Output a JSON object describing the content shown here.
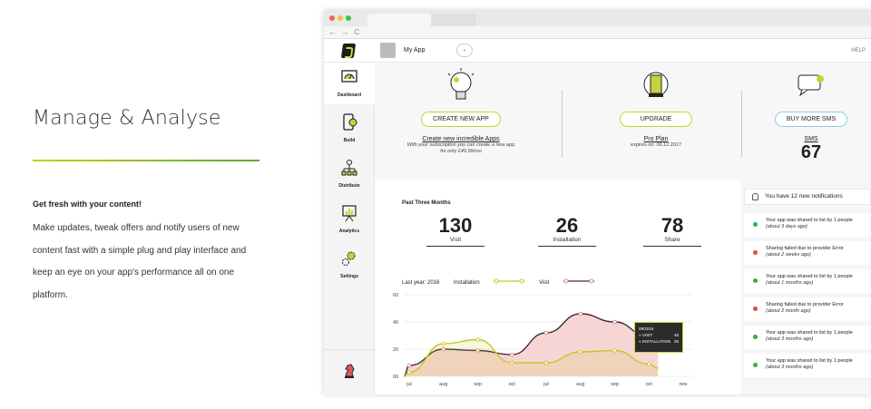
{
  "marketing": {
    "heading": "Manage & Analyse",
    "subheading": "Get fresh with your content!",
    "body": "Make updates, tweak offers and notify users of new content fast with a simple plug and play interface and keep an eye on your app's performance all on one platform."
  },
  "browser": {
    "nav_glyphs": "← → C"
  },
  "topbar": {
    "app_name": "My App",
    "dropdown": "⌄",
    "help": "HELP"
  },
  "sidebar": {
    "items": [
      {
        "label": "Dashboard",
        "icon": "dashboard-icon"
      },
      {
        "label": "Build",
        "icon": "build-icon"
      },
      {
        "label": "Distribute",
        "icon": "distribute-icon"
      },
      {
        "label": "Analytics",
        "icon": "analytics-icon"
      },
      {
        "label": "Settings",
        "icon": "settings-icon"
      }
    ],
    "bottom_icon": "chess-knight-icon"
  },
  "hero": {
    "create": {
      "button": "CREATE NEW APP",
      "link": "Create new incredible Apps",
      "note1": "With your subscription you can create a new app",
      "note2": "for only £49,99/mo"
    },
    "upgrade": {
      "button": "UPGRADE",
      "link": "Pro Plan",
      "note": "expires on: 09.12.2017"
    },
    "sms": {
      "button": "BUY MORE SMS",
      "link": "SMS",
      "count": "67"
    }
  },
  "stats": {
    "title": "Past Three Months",
    "items": [
      {
        "value": "130",
        "label": "Visit"
      },
      {
        "value": "26",
        "label": "Installation"
      },
      {
        "value": "78",
        "label": "Share"
      }
    ],
    "legend": {
      "year": "Last year: 2016",
      "installation": "Installation",
      "visit": "Visit"
    }
  },
  "tooltip": {
    "date": "09/2016",
    "rows": [
      {
        "label": "VISIT",
        "value": "46"
      },
      {
        "label": "INSTALLATION",
        "value": "25"
      }
    ]
  },
  "colors": {
    "accent": "#c5d535",
    "visit_line": "#3a2a3a",
    "visit_fill": "#f8d5d5",
    "installation_line": "#c2c920",
    "green": "#2db24a",
    "red": "#e34a4a"
  },
  "chart_data": {
    "type": "area",
    "x": [
      "jul",
      "aug",
      "sep",
      "oct",
      "jul",
      "aug",
      "sep",
      "oct",
      "nov"
    ],
    "ylim": [
      0,
      60
    ],
    "yticks": [
      0,
      20,
      40,
      60
    ],
    "series": [
      {
        "name": "Visit",
        "values": [
          8,
          20,
          19,
          16,
          32,
          46,
          40,
          29,
          null
        ]
      },
      {
        "name": "Installation",
        "values": [
          3,
          24,
          27,
          10,
          10,
          18,
          19,
          9,
          null
        ]
      }
    ]
  },
  "notifications": {
    "header": "You have 12 new notifications",
    "items": [
      {
        "text": "Your app was shared to list by 1 people",
        "time": "(about 3 days ago)",
        "status": "green"
      },
      {
        "text": "Sharing failed due to provider Error",
        "time": "(about 2 weeks ago)",
        "status": "red"
      },
      {
        "text": "Your app was shared to list by 1 people",
        "time": "(about 1 months ago)",
        "status": "green"
      },
      {
        "text": "Sharing failed due to provider Error",
        "time": "(about 2 month ago)",
        "status": "red"
      },
      {
        "text": "Your app was shared to list by 1 people",
        "time": "(about 3 months ago)",
        "status": "green"
      },
      {
        "text": "Your app was shared to list by 1 people",
        "time": "(about 3 months ago)",
        "status": "green"
      }
    ]
  }
}
